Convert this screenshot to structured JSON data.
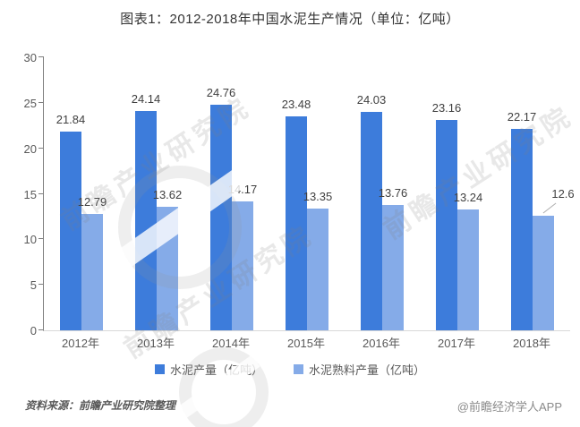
{
  "title": "图表1：2012-2018年中国水泥生产情况（单位：亿吨）",
  "chart_data": {
    "type": "bar",
    "categories": [
      "2012年",
      "2013年",
      "2014年",
      "2015年",
      "2016年",
      "2017年",
      "2018年"
    ],
    "series": [
      {
        "name": "水泥产量（亿吨）",
        "color": "#3d7cdb",
        "values": [
          21.84,
          24.14,
          24.76,
          23.48,
          24.03,
          23.16,
          22.17
        ]
      },
      {
        "name": "水泥熟料产量（亿吨）",
        "color": "#85abe8",
        "values": [
          12.79,
          13.62,
          14.17,
          13.35,
          13.76,
          13.24,
          12.6
        ]
      }
    ],
    "ylim": [
      0,
      30
    ],
    "yticks": [
      0,
      5,
      10,
      15,
      20,
      25,
      30
    ],
    "grid": false,
    "legend_position": "bottom",
    "data_labels": true,
    "label_leader": {
      "series": 1,
      "index": 6
    }
  },
  "footer": {
    "source": "资料来源：前瞻产业研究院整理",
    "credit": "@前瞻经济学人APP"
  },
  "watermark": {
    "text": "前瞻产业研究院"
  }
}
